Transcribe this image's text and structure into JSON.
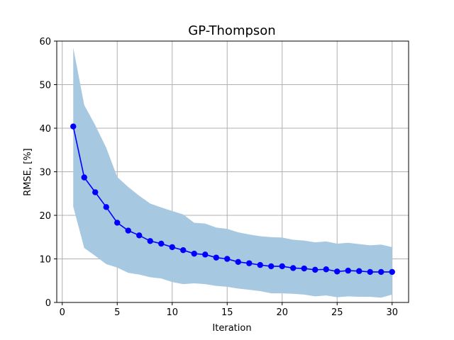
{
  "chart_data": {
    "type": "line",
    "title": "GP-Thompson",
    "xlabel": "Iteration",
    "ylabel": "RMSE, [%]",
    "xlim": [
      -0.5,
      31.5
    ],
    "ylim": [
      0,
      60
    ],
    "xticks": [
      0,
      5,
      10,
      15,
      20,
      25,
      30
    ],
    "yticks": [
      0,
      10,
      20,
      30,
      40,
      50,
      60
    ],
    "grid": true,
    "colors": {
      "line": "#0000ff",
      "band": "#a6c8e0"
    },
    "x": [
      1,
      2,
      3,
      4,
      5,
      6,
      7,
      8,
      9,
      10,
      11,
      12,
      13,
      14,
      15,
      16,
      17,
      18,
      19,
      20,
      21,
      22,
      23,
      24,
      25,
      26,
      27,
      28,
      29,
      30
    ],
    "series": [
      {
        "values": [
          40.4,
          28.7,
          25.3,
          21.9,
          18.3,
          16.5,
          15.4,
          14.1,
          13.5,
          12.7,
          12.0,
          11.2,
          11.0,
          10.3,
          10.0,
          9.3,
          9.0,
          8.6,
          8.3,
          8.3,
          7.9,
          7.8,
          7.5,
          7.6,
          7.1,
          7.3,
          7.2,
          7.0,
          7.0,
          7.0
        ],
        "upper": [
          58.5,
          45.3,
          40.7,
          35.5,
          28.8,
          26.5,
          24.5,
          22.7,
          21.8,
          21.0,
          20.2,
          18.3,
          18.1,
          17.2,
          16.9,
          16.1,
          15.6,
          15.2,
          15.0,
          14.9,
          14.4,
          14.2,
          13.8,
          14.0,
          13.5,
          13.7,
          13.4,
          13.1,
          13.3,
          12.7
        ],
        "lower": [
          22.0,
          12.5,
          10.7,
          8.8,
          8.0,
          6.8,
          6.4,
          5.8,
          5.5,
          4.7,
          4.2,
          4.4,
          4.2,
          3.8,
          3.6,
          3.2,
          2.9,
          2.6,
          2.1,
          2.1,
          2.0,
          1.8,
          1.4,
          1.6,
          1.2,
          1.4,
          1.3,
          1.3,
          1.1,
          1.8
        ]
      }
    ]
  }
}
